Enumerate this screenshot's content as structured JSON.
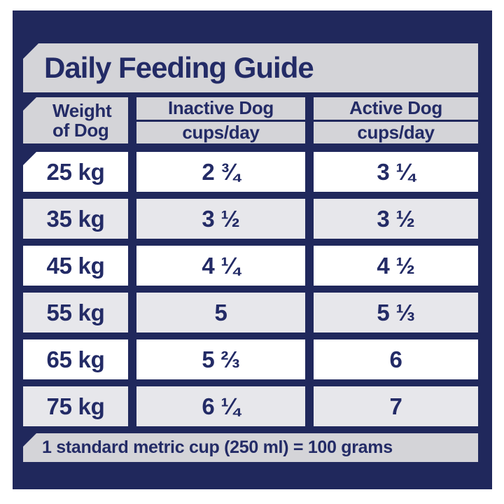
{
  "colors": {
    "navy": "#20285c",
    "text_navy": "#232b66",
    "band_gray": "#d4d4d8",
    "row_gray": "#e7e7eb",
    "row_white": "#ffffff",
    "page_bg": "#ffffff"
  },
  "title": "Daily Feeding Guide",
  "table": {
    "weight_header": {
      "line1": "Weight",
      "line2": "of Dog"
    },
    "columns": [
      {
        "label": "Inactive Dog",
        "unit": "cups/day"
      },
      {
        "label": "Active Dog",
        "unit": "cups/day"
      }
    ],
    "rows": [
      {
        "weight": "25 kg",
        "inactive": "2 ¾",
        "active": "3 ¼"
      },
      {
        "weight": "35 kg",
        "inactive": "3 ½",
        "active": "3 ½"
      },
      {
        "weight": "45 kg",
        "inactive": "4 ¼",
        "active": "4 ½"
      },
      {
        "weight": "55 kg",
        "inactive": "5",
        "active": "5 ⅓"
      },
      {
        "weight": "65 kg",
        "inactive": "5 ⅔",
        "active": "6"
      },
      {
        "weight": "75 kg",
        "inactive": "6 ¼",
        "active": "7"
      }
    ]
  },
  "footer_note": "1 standard metric cup (250 ml) = 100 grams",
  "chart_data": {
    "type": "table",
    "title": "Daily Feeding Guide",
    "columns": [
      "Weight of Dog",
      "Inactive Dog (cups/day)",
      "Active Dog (cups/day)"
    ],
    "rows": [
      [
        "25 kg",
        "2 ¾",
        "3 ¼"
      ],
      [
        "35 kg",
        "3 ½",
        "3 ½"
      ],
      [
        "45 kg",
        "4 ¼",
        "4 ½"
      ],
      [
        "55 kg",
        "5",
        "5 ⅓"
      ],
      [
        "65 kg",
        "5 ⅔",
        "6"
      ],
      [
        "75 kg",
        "6 ¼",
        "7"
      ]
    ],
    "note": "1 standard metric cup (250 ml) = 100 grams"
  }
}
